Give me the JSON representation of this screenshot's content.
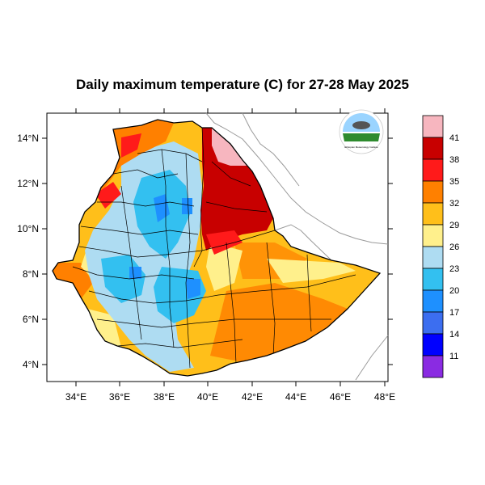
{
  "title": "Daily maximum temperature (C) for 27-28 May 2025",
  "axes": {
    "lon_ticks": [
      "34°E",
      "36°E",
      "38°E",
      "40°E",
      "42°E",
      "44°E",
      "46°E",
      "48°E"
    ],
    "lat_ticks": [
      "14°N",
      "12°N",
      "10°N",
      "8°N",
      "6°N",
      "4°N"
    ],
    "lon_range": [
      33,
      48.2
    ],
    "lat_range": [
      3.2,
      15
    ]
  },
  "legend": {
    "labels": [
      "41",
      "38",
      "35",
      "32",
      "29",
      "26",
      "23",
      "20",
      "17",
      "14",
      "11"
    ],
    "colors": [
      "#f7b6bf",
      "#c80000",
      "#ff1a1a",
      "#ff8000",
      "#ffbf1a",
      "#fff08c",
      "#aedcf2",
      "#33c0f0",
      "#1e90ff",
      "#3c6ef0",
      "#0000ff",
      "#8a2be2"
    ]
  },
  "logo": {
    "text": "Ethiopian Meteorology Institute",
    "sky_color": "#9ad4ff",
    "ground_color": "#2e8b2e"
  },
  "colors": {
    "very_hot": "#c80000",
    "hot": "#ff1a1a",
    "warm": "#ff8000",
    "mild": "#ffbf1a",
    "cool_yellow": "#fff08c",
    "light_blue": "#aedcf2",
    "blue": "#33c0f0",
    "deep_blue": "#1e90ff",
    "pink": "#f7b6bf"
  }
}
